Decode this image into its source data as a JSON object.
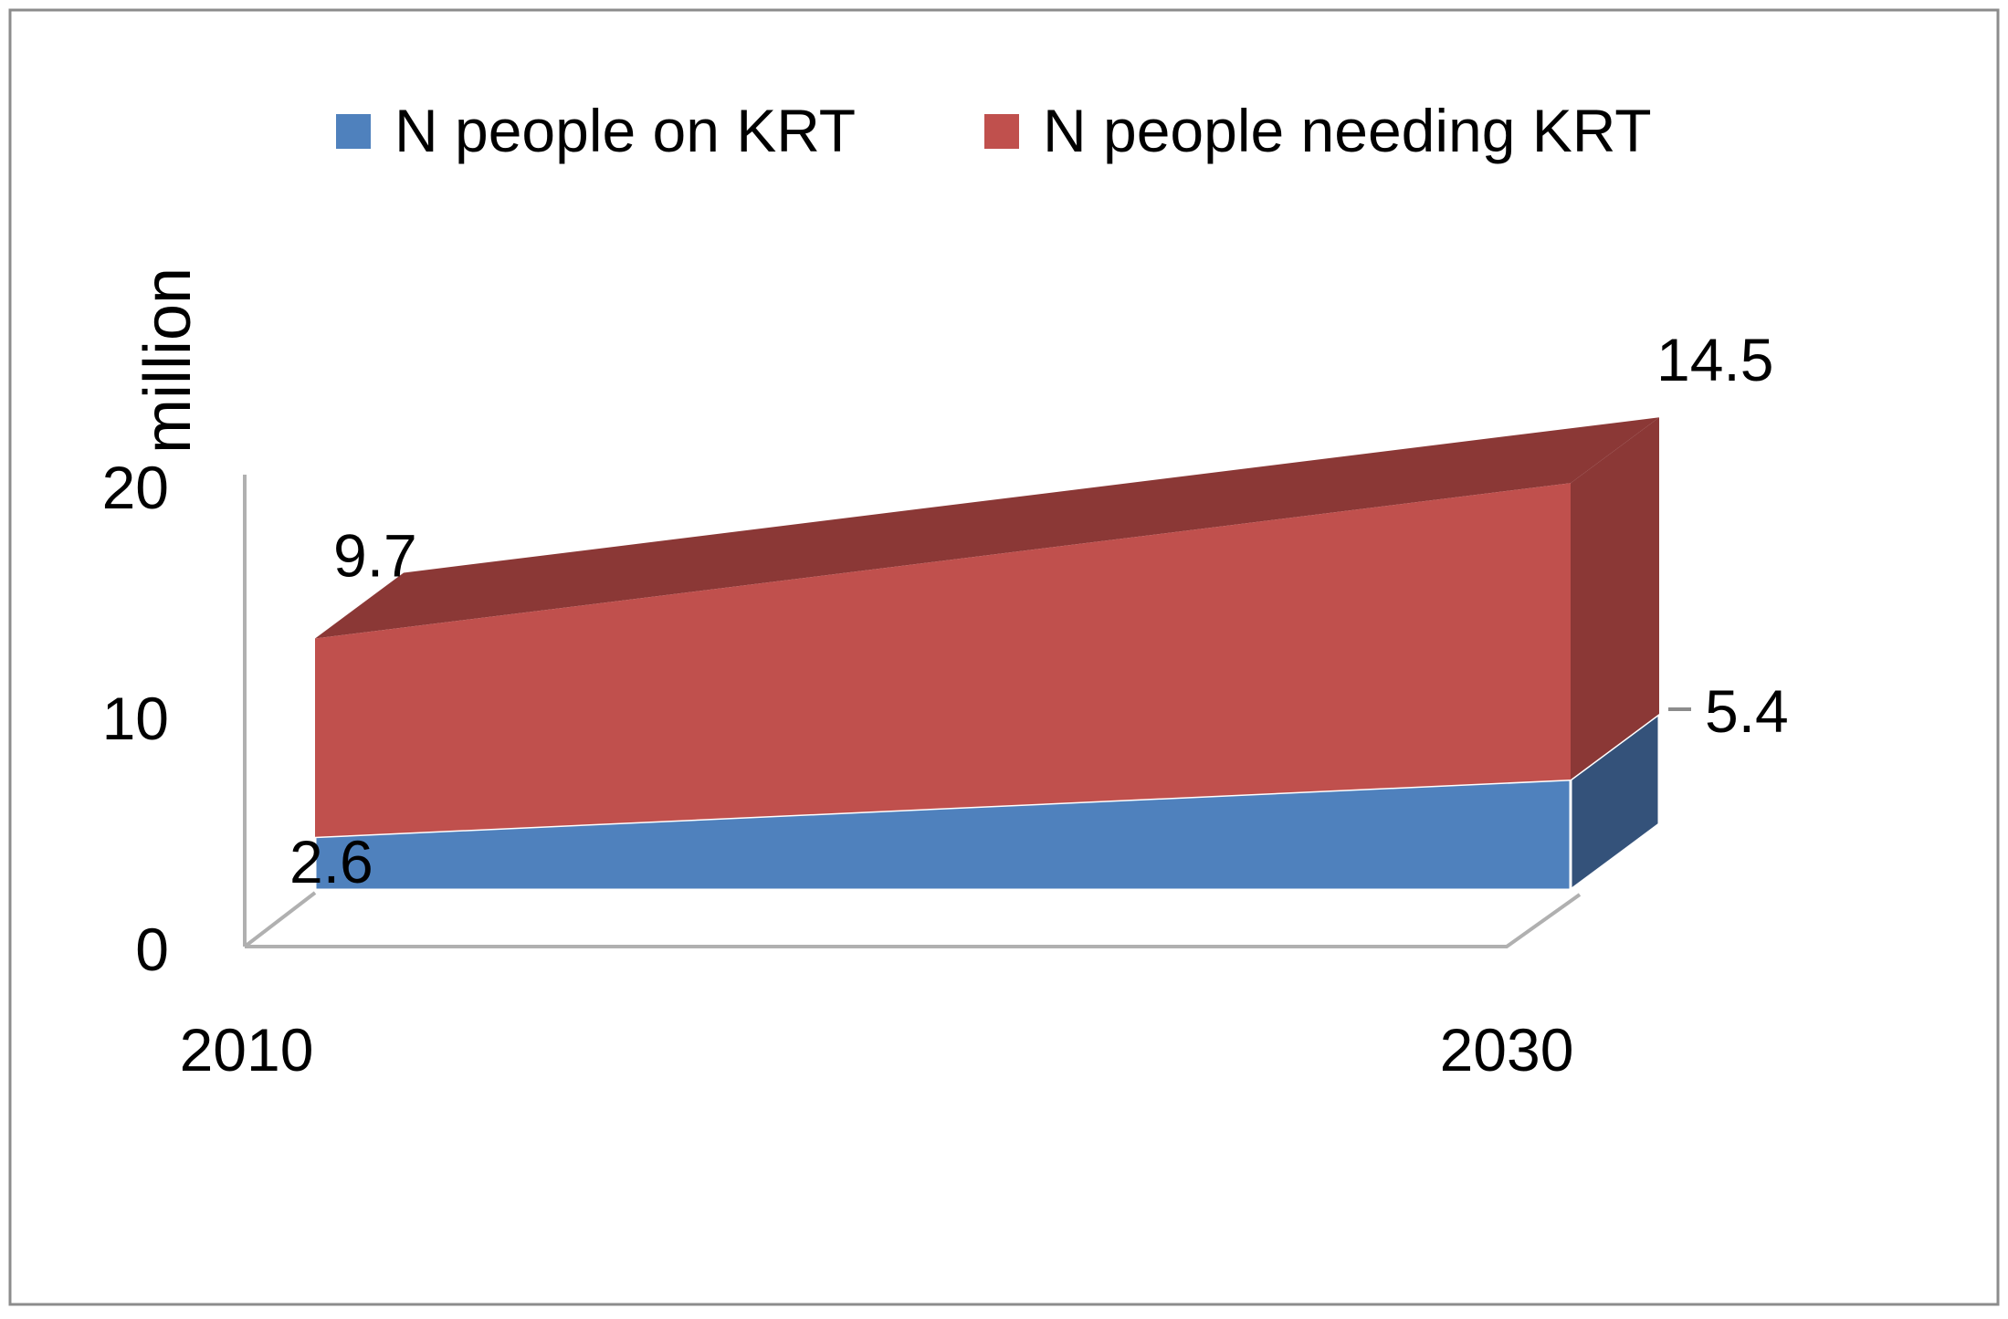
{
  "chart_data": {
    "type": "area",
    "style": "3d-stacked-area",
    "title": "",
    "xlabel": "",
    "ylabel": "million",
    "x": [
      "2010",
      "2030"
    ],
    "ylim": [
      0,
      20
    ],
    "yticks": [
      "0",
      "10",
      "20"
    ],
    "grid": false,
    "legend_position": "top",
    "series": [
      {
        "name": "N people on KRT",
        "values": [
          2.6,
          5.4
        ],
        "labels": [
          "2.6",
          "5.4"
        ],
        "color": "#4f81bd",
        "side_color": "#34527a"
      },
      {
        "name": "N people needing KRT",
        "values": [
          9.7,
          14.5
        ],
        "labels": [
          "9.7",
          "14.5"
        ],
        "color": "#c0504d",
        "side_color": "#8b3836"
      }
    ]
  }
}
